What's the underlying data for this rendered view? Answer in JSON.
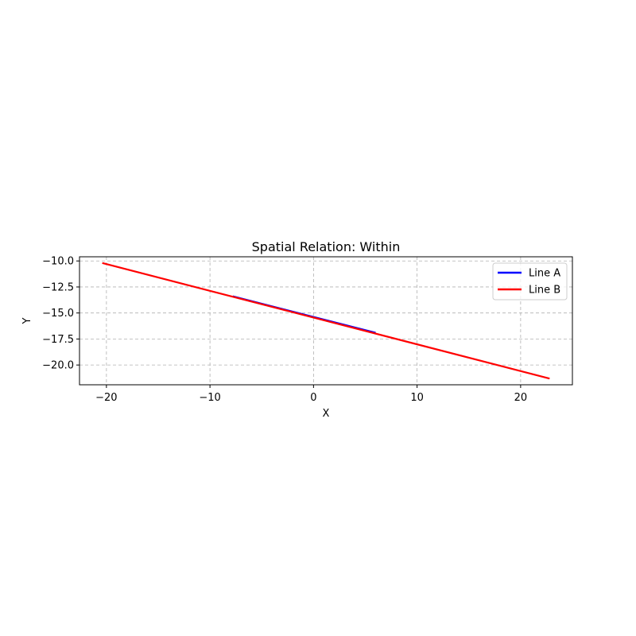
{
  "chart_data": {
    "type": "line",
    "title": "Spatial Relation: Within",
    "xlabel": "X",
    "ylabel": "Y",
    "xlim": [
      -22.6,
      25.0
    ],
    "ylim": [
      -21.9,
      -9.6
    ],
    "xticks": [
      -20,
      -10,
      0,
      10,
      20
    ],
    "xtick_labels": [
      "−20",
      "−10",
      "0",
      "10",
      "20"
    ],
    "yticks": [
      -10.0,
      -12.5,
      -15.0,
      -17.5,
      -20.0
    ],
    "ytick_labels": [
      "−10.0",
      "−12.5",
      "−15.0",
      "−17.5",
      "−20.0"
    ],
    "grid": true,
    "legend_position": "top-right",
    "series": [
      {
        "name": "Line A",
        "color": "#0000ff",
        "x": [
          -7.8,
          6.0
        ],
        "y": [
          -13.4,
          -16.9
        ]
      },
      {
        "name": "Line B",
        "color": "#ff0000",
        "x": [
          -20.4,
          22.8
        ],
        "y": [
          -10.2,
          -21.3
        ]
      }
    ]
  }
}
